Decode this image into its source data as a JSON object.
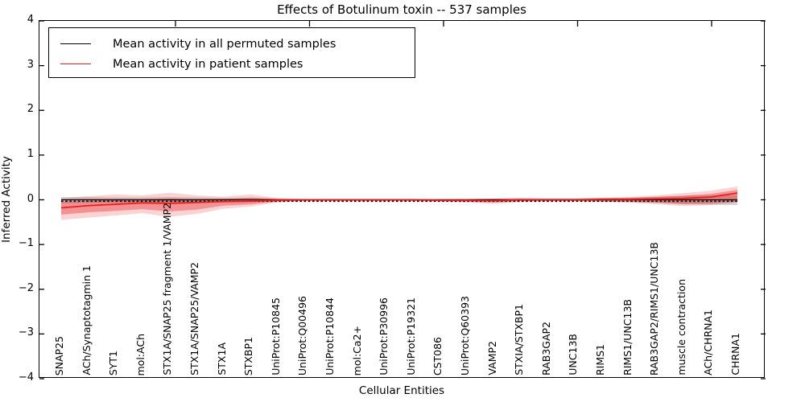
{
  "title": "Effects of Botulinum toxin -- 537 samples",
  "legend": {
    "items": [
      {
        "label": "Mean activity in all permuted samples",
        "color": "#000000"
      },
      {
        "label": "Mean activity in patient samples",
        "color": "#ee1c1c"
      }
    ]
  },
  "axes": {
    "ylabel": "Inferred Activity",
    "xlabel": "Cellular Entities",
    "ytick_labels": [
      "4",
      "3",
      "2",
      "1",
      "0",
      "−1",
      "−2",
      "−3",
      "−4"
    ],
    "ytick_values": [
      4,
      3,
      2,
      1,
      0,
      -1,
      -2,
      -3,
      -4
    ]
  },
  "colors": {
    "permuted_line": "#000000",
    "patient_line": "#ee1c1c",
    "patient_band_inner": "rgba(232,40,40,0.38)",
    "patient_band_outer": "rgba(232,40,40,0.20)",
    "permuted_band": "rgba(110,110,110,0.30)",
    "axis": "#000000"
  },
  "chart_data": {
    "type": "line",
    "title": "Effects of Botulinum toxin -- 537 samples",
    "xlabel": "Cellular Entities",
    "ylabel": "Inferred Activity",
    "ylim": [
      -4,
      4
    ],
    "legend_position": "upper left",
    "grid": false,
    "categories": [
      "SNAP25",
      "ACh/Synaptotagmin 1",
      "SYT1",
      "mol:ACh",
      "STX1A/SNAP25 fragment 1/VAMP2",
      "STX1A/SNAP25/VAMP2",
      "STX1A",
      "STXBP1",
      "UniProt:P10845",
      "UniProt:Q00496",
      "UniProt:P10844",
      "mol:Ca2+",
      "UniProt:P30996",
      "UniProt:P19321",
      "CST086",
      "UniProt:Q60393",
      "VAMP2",
      "STXIA/STXBP1",
      "RAB3GAP2",
      "UNC13B",
      "RIMS1",
      "RIMS1/UNC13B",
      "RAB3GAP2/RIMS1/UNC13B",
      "muscle contraction",
      "ACh/CHRNA1",
      "CHRNA1"
    ],
    "series": [
      {
        "name": "Mean activity in all permuted samples",
        "values": [
          0,
          0,
          0,
          0,
          0,
          0,
          0,
          0,
          0,
          0,
          0,
          0,
          0,
          0,
          0,
          0,
          0,
          0,
          0,
          0,
          0,
          0,
          0,
          0,
          0,
          0
        ],
        "band_low": [
          -0.08,
          -0.07,
          -0.06,
          -0.06,
          -0.07,
          -0.06,
          -0.05,
          -0.04,
          -0.03,
          -0.02,
          -0.02,
          -0.02,
          -0.02,
          -0.02,
          -0.02,
          -0.02,
          -0.03,
          -0.03,
          -0.03,
          -0.03,
          -0.04,
          -0.05,
          -0.07,
          -0.1,
          -0.11,
          -0.12
        ],
        "band_high": [
          0.06,
          0.06,
          0.05,
          0.05,
          0.06,
          0.05,
          0.04,
          0.04,
          0.03,
          0.02,
          0.02,
          0.02,
          0.02,
          0.02,
          0.02,
          0.02,
          0.03,
          0.03,
          0.03,
          0.03,
          0.04,
          0.05,
          0.07,
          0.09,
          0.1,
          0.1
        ]
      },
      {
        "name": "Mean activity in patient samples",
        "values": [
          -0.18,
          -0.13,
          -0.1,
          -0.07,
          -0.08,
          -0.06,
          -0.04,
          -0.03,
          -0.01,
          0,
          0,
          0,
          0,
          0,
          -0.01,
          -0.01,
          -0.02,
          0,
          0,
          0,
          0.01,
          0.01,
          0.02,
          0.03,
          0.06,
          0.15
        ],
        "band_inner_low": [
          -0.33,
          -0.28,
          -0.25,
          -0.21,
          -0.26,
          -0.22,
          -0.13,
          -0.1,
          -0.04,
          -0.02,
          -0.02,
          -0.02,
          -0.02,
          -0.02,
          -0.03,
          -0.04,
          -0.06,
          -0.03,
          -0.02,
          -0.02,
          -0.03,
          -0.04,
          -0.06,
          -0.09,
          -0.08,
          -0.04
        ],
        "band_inner_high": [
          -0.05,
          -0.02,
          0.0,
          0.01,
          0.03,
          0.01,
          0.02,
          0.05,
          0.02,
          0.01,
          0.01,
          0.01,
          0.01,
          0.01,
          0.01,
          0.01,
          0.02,
          0.02,
          0.02,
          0.02,
          0.03,
          0.04,
          0.06,
          0.09,
          0.13,
          0.22
        ],
        "band_outer_low": [
          -0.45,
          -0.4,
          -0.35,
          -0.3,
          -0.38,
          -0.32,
          -0.2,
          -0.15,
          -0.06,
          -0.03,
          -0.03,
          -0.03,
          -0.03,
          -0.03,
          -0.04,
          -0.06,
          -0.09,
          -0.05,
          -0.03,
          -0.03,
          -0.05,
          -0.06,
          -0.1,
          -0.14,
          -0.12,
          -0.06
        ],
        "band_outer_high": [
          0.03,
          0.08,
          0.12,
          0.1,
          0.16,
          0.1,
          0.07,
          0.12,
          0.04,
          0.02,
          0.02,
          0.02,
          0.02,
          0.02,
          0.02,
          0.03,
          0.03,
          0.05,
          0.03,
          0.03,
          0.05,
          0.06,
          0.1,
          0.15,
          0.2,
          0.3
        ]
      }
    ]
  }
}
